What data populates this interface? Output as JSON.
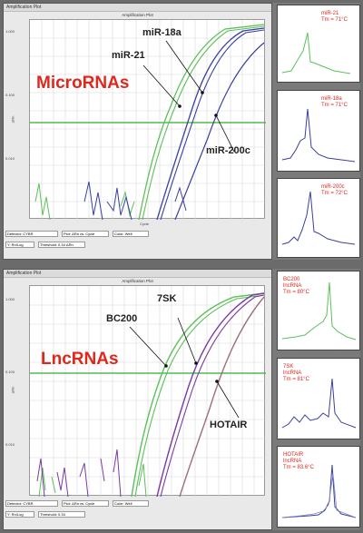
{
  "top": {
    "window_title": "Amplification Plot",
    "plot_title": "Amplification Plot",
    "category": "MicroRNAs",
    "y_axis_label": "ΔRn",
    "x_axis_label": "Cycle",
    "y_ticks": [
      "1.000",
      "0.100",
      "0.010"
    ],
    "x_ticks": [
      "1",
      "4",
      "8",
      "12",
      "16",
      "20",
      "24",
      "28",
      "32",
      "36",
      "40"
    ],
    "labels": [
      "miR-18a",
      "miR-21",
      "miR-200c"
    ],
    "controls": {
      "detector_label": "Detector:",
      "detector_value": "CYBR",
      "plot_label": "Plot:",
      "plot_value": "ΔRn vs. Cycle",
      "color_label": "Color:",
      "color_value": "Well",
      "scale_value": "Y: Rn/Log",
      "threshold_label": "Threshold:",
      "threshold_value": "0.34 ΔRn"
    },
    "melt_curves": [
      {
        "name": "miR-21",
        "tm": "Tm = 71°C",
        "color": "#3fa84a"
      },
      {
        "name": "miR-18a",
        "tm": "Tm = 71°C",
        "color": "#3b43a8"
      },
      {
        "name": "miR-200c",
        "tm": "Tm = 72°C",
        "color": "#3b43a8"
      }
    ]
  },
  "bottom": {
    "window_title": "Amplification Plot",
    "plot_title": "Amplification Plot",
    "category": "LncRNAs",
    "y_axis_label": "ΔRn",
    "x_axis_label": "Cycle",
    "y_ticks": [
      "1.000",
      "0.100",
      "0.010"
    ],
    "x_ticks": [
      "1",
      "4",
      "8",
      "12",
      "16",
      "20",
      "24",
      "28",
      "32",
      "36",
      "40"
    ],
    "labels": [
      "7SK",
      "BC200",
      "HOTAIR"
    ],
    "controls": {
      "detector_label": "Detector:",
      "detector_value": "CYBR",
      "plot_label": "Plot:",
      "plot_value": "ΔRn vs. Cycle",
      "color_label": "Color:",
      "color_value": "Well",
      "scale_value": "Y: Rn/Log",
      "threshold_label": "Threshold:",
      "threshold_value": "0.34"
    },
    "melt_curves": [
      {
        "name": "BC200\nlncRNA",
        "tm": "Tm = 80°C",
        "color": "#3fa84a"
      },
      {
        "name": "7SK\nlncRNA",
        "tm": "Tm = 81°C",
        "color": "#3b43a8"
      },
      {
        "name": "HOTAIR\nlncRNA",
        "tm": "Tm = 83.6°C",
        "color": "#3b43a8"
      }
    ]
  },
  "colors": {
    "green": "#5cc05a",
    "blue": "#3a3fa0",
    "purple": "#7a3aa0",
    "mauve": "#9c6f7c",
    "threshold": "#2fae2f",
    "red": "#e1261c"
  }
}
